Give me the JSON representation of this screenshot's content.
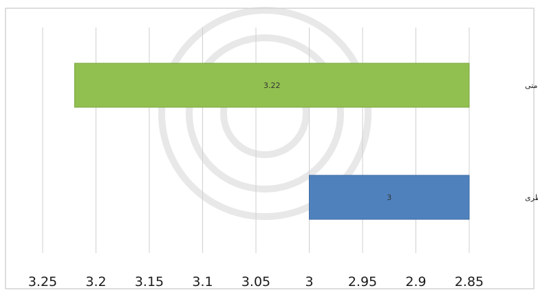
{
  "chart_data": {
    "type": "bar",
    "orientation": "horizontal",
    "x_axis_reversed": true,
    "categories": [
      "میانگین امتی",
      "میانه نظری"
    ],
    "values": [
      3.22,
      3
    ],
    "data_labels": [
      "3.22",
      "3"
    ],
    "bar_colors": [
      "#92c050",
      "#4f81bd"
    ],
    "xlim": [
      2.85,
      3.25
    ],
    "x_ticks": [
      3.25,
      3.2,
      3.15,
      3.1,
      3.05,
      3,
      2.95,
      2.9,
      2.85
    ],
    "x_tick_labels": [
      "3.25",
      "3.2",
      "3.15",
      "3.1",
      "3.05",
      "3",
      "2.95",
      "2.9",
      "2.85"
    ],
    "grid": true,
    "legend": "none",
    "title": "",
    "xlabel": "",
    "ylabel": ""
  }
}
